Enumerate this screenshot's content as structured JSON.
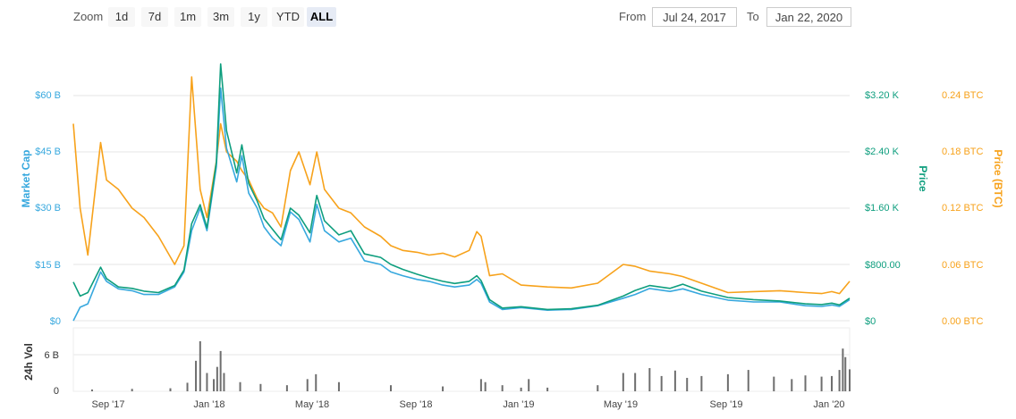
{
  "toolbar": {
    "zoom_label": "Zoom",
    "zoom_buttons": [
      "1d",
      "7d",
      "1m",
      "3m",
      "1y",
      "YTD",
      "ALL"
    ],
    "active_zoom": "ALL",
    "from_label": "From",
    "from_value": "Jul 24, 2017",
    "to_label": "To",
    "to_value": "Jan 22, 2020"
  },
  "colors": {
    "market_cap": "#37a8de",
    "price_usd": "#0e9e7e",
    "price_btc": "#f7a21b",
    "volume": "#6e6e6e",
    "grid": "#e6e6e6"
  },
  "chart_data": [
    {
      "type": "line",
      "x_ticks": [
        "Sep '17",
        "Jan '18",
        "May '18",
        "Sep '18",
        "Jan '19",
        "May '19",
        "Sep '19",
        "Jan '20"
      ],
      "x_range": [
        "2017-07-24",
        "2020-01-22"
      ],
      "axes": {
        "market_cap": {
          "label": "Market Cap",
          "ticks": [
            "$0",
            "$15 B",
            "$30 B",
            "$45 B",
            "$60 B"
          ],
          "ylim": [
            0,
            60
          ]
        },
        "price_usd": {
          "label": "Price",
          "ticks": [
            "$0",
            "$800.00",
            "$1.60 K",
            "$2.40 K",
            "$3.20 K"
          ],
          "ylim": [
            0,
            3200
          ]
        },
        "price_btc": {
          "label": "Price (BTC)",
          "ticks": [
            "0.00 BTC",
            "0.06 BTC",
            "0.12 BTC",
            "0.18 BTC",
            "0.24 BTC"
          ],
          "ylim": [
            0,
            0.24
          ]
        }
      },
      "grid": true,
      "series": [
        {
          "key": "market_cap",
          "x": [
            "2017-07-24",
            "2017-08-01",
            "2017-08-10",
            "2017-08-25",
            "2017-09-01",
            "2017-09-15",
            "2017-10-01",
            "2017-10-15",
            "2017-11-01",
            "2017-11-20",
            "2017-12-01",
            "2017-12-10",
            "2017-12-20",
            "2017-12-28",
            "2018-01-08",
            "2018-01-13",
            "2018-01-20",
            "2018-02-01",
            "2018-02-07",
            "2018-02-15",
            "2018-02-25",
            "2018-03-05",
            "2018-03-15",
            "2018-03-25",
            "2018-04-05",
            "2018-04-15",
            "2018-04-28",
            "2018-05-06",
            "2018-05-15",
            "2018-06-01",
            "2018-06-15",
            "2018-07-01",
            "2018-07-20",
            "2018-08-01",
            "2018-08-15",
            "2018-09-01",
            "2018-09-15",
            "2018-10-01",
            "2018-10-15",
            "2018-11-01",
            "2018-11-10",
            "2018-11-15",
            "2018-11-25",
            "2018-12-10",
            "2019-01-01",
            "2019-02-01",
            "2019-03-01",
            "2019-04-01",
            "2019-05-01",
            "2019-05-15",
            "2019-06-01",
            "2019-06-25",
            "2019-07-10",
            "2019-08-01",
            "2019-09-01",
            "2019-10-01",
            "2019-11-01",
            "2019-12-01",
            "2019-12-20",
            "2020-01-01",
            "2020-01-10",
            "2020-01-22"
          ],
          "values": [
            0,
            3.6,
            4.5,
            13,
            10.5,
            8.5,
            8,
            7,
            7,
            9,
            13,
            24,
            30,
            24,
            41,
            62,
            46,
            37,
            44,
            34,
            30,
            25,
            22,
            20,
            29,
            27,
            21,
            31,
            24,
            21,
            22,
            16,
            15,
            13,
            12,
            11,
            10.5,
            9.5,
            9,
            9.5,
            11,
            10,
            5,
            3,
            3.5,
            2.8,
            3,
            4,
            6,
            7,
            8.6,
            7.8,
            8.5,
            7,
            5.5,
            5,
            5,
            4,
            3.8,
            4.2,
            3.8,
            5.6
          ]
        },
        {
          "key": "price_usd",
          "x": [
            "2017-07-24",
            "2017-08-01",
            "2017-08-10",
            "2017-08-25",
            "2017-09-01",
            "2017-09-15",
            "2017-10-01",
            "2017-10-15",
            "2017-11-01",
            "2017-11-20",
            "2017-12-01",
            "2017-12-10",
            "2017-12-20",
            "2017-12-28",
            "2018-01-08",
            "2018-01-13",
            "2018-01-20",
            "2018-02-01",
            "2018-02-07",
            "2018-02-15",
            "2018-02-25",
            "2018-03-05",
            "2018-03-15",
            "2018-03-25",
            "2018-04-05",
            "2018-04-15",
            "2018-04-28",
            "2018-05-06",
            "2018-05-15",
            "2018-06-01",
            "2018-06-15",
            "2018-07-01",
            "2018-07-20",
            "2018-08-01",
            "2018-08-15",
            "2018-09-01",
            "2018-09-15",
            "2018-10-01",
            "2018-10-15",
            "2018-11-01",
            "2018-11-10",
            "2018-11-15",
            "2018-11-25",
            "2018-12-10",
            "2019-01-01",
            "2019-02-01",
            "2019-03-01",
            "2019-04-01",
            "2019-05-01",
            "2019-05-15",
            "2019-06-01",
            "2019-06-25",
            "2019-07-10",
            "2019-08-01",
            "2019-09-01",
            "2019-10-01",
            "2019-11-01",
            "2019-12-01",
            "2019-12-20",
            "2020-01-01",
            "2020-01-10",
            "2020-01-22"
          ],
          "values": [
            550,
            350,
            400,
            760,
            600,
            480,
            460,
            420,
            400,
            500,
            720,
            1380,
            1650,
            1320,
            2250,
            3650,
            2700,
            2100,
            2500,
            1950,
            1700,
            1450,
            1300,
            1150,
            1600,
            1500,
            1250,
            1780,
            1420,
            1220,
            1280,
            950,
            900,
            800,
            730,
            660,
            610,
            560,
            530,
            560,
            640,
            570,
            300,
            180,
            200,
            160,
            170,
            220,
            350,
            430,
            500,
            460,
            520,
            420,
            330,
            300,
            280,
            240,
            230,
            250,
            225,
            320
          ]
        },
        {
          "key": "price_btc",
          "x": [
            "2017-07-24",
            "2017-08-01",
            "2017-08-10",
            "2017-08-25",
            "2017-09-01",
            "2017-09-15",
            "2017-10-01",
            "2017-10-15",
            "2017-11-01",
            "2017-11-20",
            "2017-12-01",
            "2017-12-10",
            "2017-12-20",
            "2017-12-28",
            "2018-01-08",
            "2018-01-13",
            "2018-01-20",
            "2018-02-01",
            "2018-02-07",
            "2018-02-15",
            "2018-02-25",
            "2018-03-05",
            "2018-03-15",
            "2018-03-25",
            "2018-04-05",
            "2018-04-15",
            "2018-04-28",
            "2018-05-06",
            "2018-05-15",
            "2018-06-01",
            "2018-06-15",
            "2018-07-01",
            "2018-07-20",
            "2018-08-01",
            "2018-08-15",
            "2018-09-01",
            "2018-09-15",
            "2018-10-01",
            "2018-10-15",
            "2018-11-01",
            "2018-11-10",
            "2018-11-15",
            "2018-11-25",
            "2018-12-10",
            "2019-01-01",
            "2019-02-01",
            "2019-03-01",
            "2019-04-01",
            "2019-05-01",
            "2019-05-15",
            "2019-06-01",
            "2019-06-25",
            "2019-07-10",
            "2019-08-01",
            "2019-09-01",
            "2019-10-01",
            "2019-11-01",
            "2019-12-01",
            "2019-12-20",
            "2020-01-01",
            "2020-01-10",
            "2020-01-22"
          ],
          "values": [
            0.21,
            0.12,
            0.07,
            0.19,
            0.15,
            0.14,
            0.12,
            0.11,
            0.09,
            0.06,
            0.08,
            0.26,
            0.14,
            0.11,
            0.17,
            0.21,
            0.18,
            0.17,
            0.16,
            0.15,
            0.13,
            0.12,
            0.115,
            0.1,
            0.16,
            0.18,
            0.145,
            0.18,
            0.14,
            0.12,
            0.115,
            0.1,
            0.09,
            0.08,
            0.075,
            0.073,
            0.07,
            0.072,
            0.068,
            0.075,
            0.095,
            0.09,
            0.048,
            0.05,
            0.038,
            0.036,
            0.035,
            0.04,
            0.06,
            0.058,
            0.053,
            0.05,
            0.047,
            0.04,
            0.03,
            0.031,
            0.032,
            0.03,
            0.029,
            0.031,
            0.029,
            0.042
          ]
        }
      ]
    },
    {
      "type": "bar",
      "title": "24h Vol",
      "ticks": [
        "0",
        "6 B"
      ],
      "ylim": [
        0,
        9
      ],
      "x": [
        "2017-08-15",
        "2017-10-01",
        "2017-11-15",
        "2017-12-05",
        "2017-12-15",
        "2017-12-20",
        "2017-12-28",
        "2018-01-05",
        "2018-01-09",
        "2018-01-13",
        "2018-01-17",
        "2018-02-05",
        "2018-03-01",
        "2018-04-01",
        "2018-04-25",
        "2018-05-05",
        "2018-06-01",
        "2018-08-01",
        "2018-10-01",
        "2018-11-15",
        "2018-11-20",
        "2018-12-10",
        "2019-01-01",
        "2019-01-10",
        "2019-02-01",
        "2019-04-01",
        "2019-05-01",
        "2019-05-15",
        "2019-06-01",
        "2019-06-15",
        "2019-07-01",
        "2019-07-15",
        "2019-08-01",
        "2019-09-01",
        "2019-09-25",
        "2019-10-25",
        "2019-11-15",
        "2019-12-01",
        "2019-12-20",
        "2020-01-01",
        "2020-01-10",
        "2020-01-14",
        "2020-01-17",
        "2020-01-22"
      ],
      "values": [
        0.3,
        0.4,
        0.5,
        1.4,
        5,
        8.2,
        3,
        2,
        4,
        6.6,
        3,
        1.5,
        1.2,
        1,
        2,
        2.8,
        1.5,
        1,
        0.8,
        2,
        1.5,
        1,
        0.6,
        2,
        0.6,
        1,
        3,
        3,
        3.8,
        2.5,
        3.4,
        2.2,
        2.5,
        2.8,
        3.5,
        2.4,
        2,
        2.6,
        2.4,
        2.5,
        3.5,
        7,
        5.6,
        3.6
      ]
    }
  ]
}
